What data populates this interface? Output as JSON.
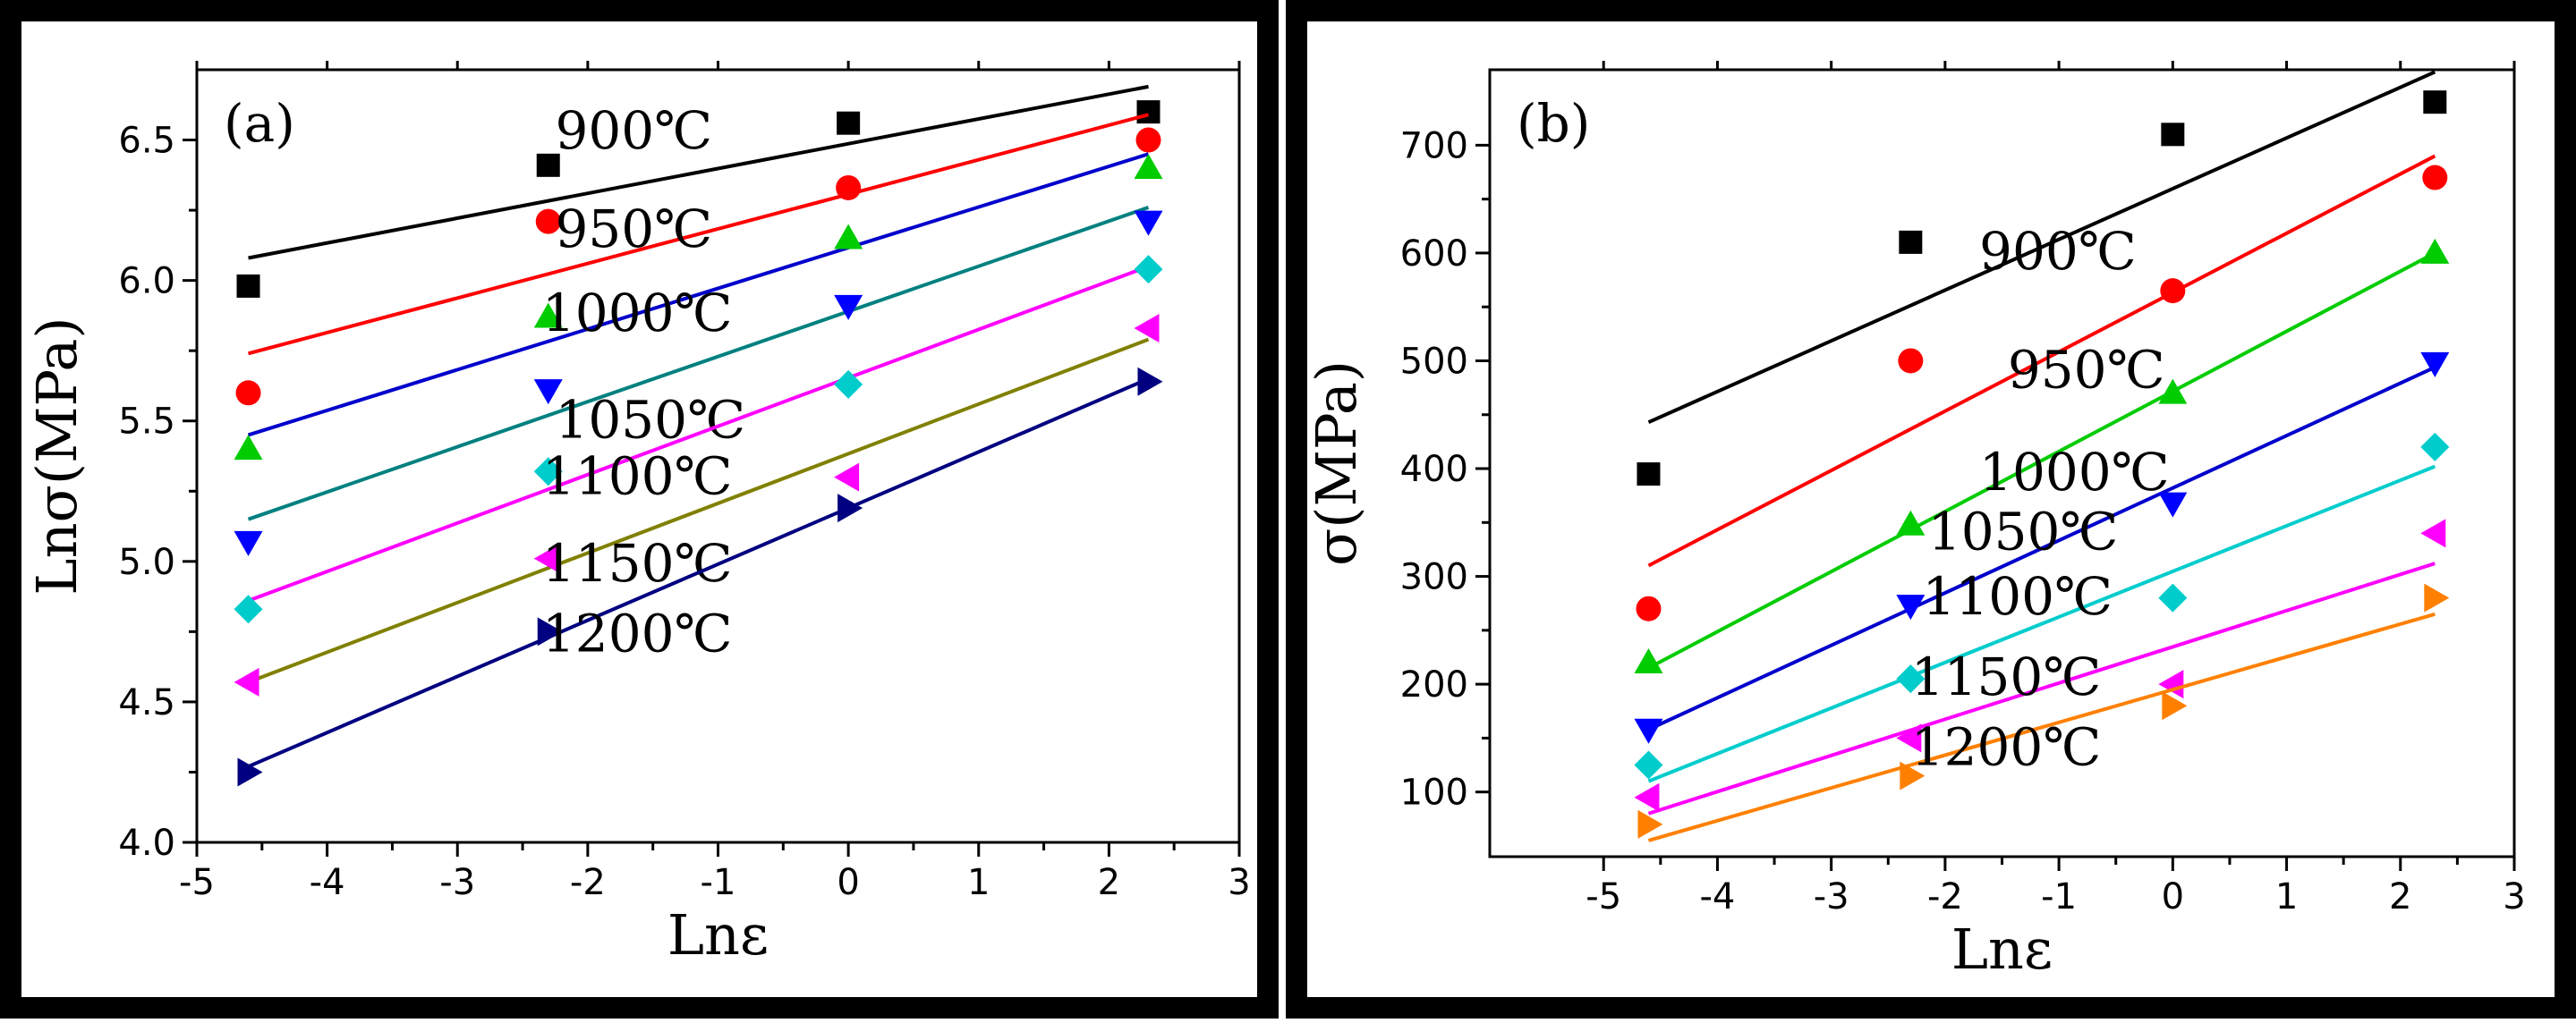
{
  "chart_data": [
    {
      "type": "scatter",
      "panel_label": "(a)",
      "xlabel": "Lnε",
      "ylabel": "Lnσ(MPa)",
      "xlim": [
        -5,
        3
      ],
      "ylim": [
        4.0,
        6.75
      ],
      "x_ticks": [
        -5,
        -4,
        -3,
        -2,
        -1,
        0,
        1,
        2,
        3
      ],
      "y_ticks": [
        4.0,
        4.5,
        5.0,
        5.5,
        6.0,
        6.5
      ],
      "x_tick_labels": [
        "-5",
        "-4",
        "-3",
        "-2",
        "-1",
        "0",
        "1",
        "2",
        "3"
      ],
      "y_tick_labels": [
        "4.0",
        "4.5",
        "5.0",
        "5.5",
        "6.0",
        "6.5"
      ],
      "x": [
        -4.605,
        -2.303,
        0,
        2.303
      ],
      "series": [
        {
          "name": "900℃",
          "marker": "square",
          "color": "#000000",
          "values": [
            5.98,
            6.41,
            6.56,
            6.6
          ],
          "fit": [
            6.08,
            6.69
          ],
          "label_pos": [
            -2.25,
            6.47
          ]
        },
        {
          "name": "950℃",
          "marker": "circle",
          "color": "#ff0000",
          "values": [
            5.6,
            6.21,
            6.33,
            6.5
          ],
          "fit": [
            5.74,
            6.59
          ],
          "label_pos": [
            -2.25,
            6.12
          ]
        },
        {
          "name": "1000℃",
          "marker": "triangle-up",
          "color": "#00cc00",
          "values": [
            5.4,
            5.87,
            6.15,
            6.4
          ],
          "fit": [
            5.45,
            6.45
          ],
          "label_pos": [
            -2.35,
            5.82
          ]
        },
        {
          "name": "1050℃",
          "marker": "triangle-down",
          "color": "#0000ff",
          "values": [
            5.07,
            5.61,
            5.91,
            6.21
          ],
          "fit": [
            5.15,
            6.26
          ],
          "label_pos": [
            -2.25,
            5.44
          ]
        },
        {
          "name": "1100℃",
          "marker": "diamond",
          "color": "#00cccc",
          "values": [
            4.83,
            5.32,
            5.63,
            6.04
          ],
          "fit": [
            4.86,
            6.05
          ],
          "label_pos": [
            -2.35,
            5.24
          ]
        },
        {
          "name": "1150℃",
          "marker": "triangle-left",
          "color": "#ff00ff",
          "values": [
            4.57,
            5.01,
            5.3,
            5.83
          ],
          "fit": [
            4.57,
            5.79
          ],
          "label_pos": [
            -2.35,
            4.93
          ]
        },
        {
          "name": "1200℃",
          "marker": "triangle-right",
          "color": "#000080",
          "values": [
            4.25,
            4.75,
            5.19,
            5.64
          ],
          "fit": [
            4.27,
            5.65
          ],
          "label_pos": [
            -2.35,
            4.68
          ]
        }
      ],
      "fit_colors": [
        "#000000",
        "#ff0000",
        "#0000cc",
        "#008080",
        "#ff00ff",
        "#808000",
        "#000080"
      ]
    },
    {
      "type": "scatter",
      "panel_label": "(b)",
      "xlabel": "Lnε",
      "ylabel": "σ(MPa)",
      "xlim": [
        -6,
        3
      ],
      "ylim": [
        40,
        770
      ],
      "x_ticks": [
        -5,
        -4,
        -3,
        -2,
        -1,
        0,
        1,
        2,
        3
      ],
      "y_ticks": [
        100,
        200,
        300,
        400,
        500,
        600,
        700
      ],
      "x_tick_labels": [
        "-5",
        "-4",
        "-3",
        "-2",
        "-1",
        "0",
        "1",
        "2",
        "3"
      ],
      "y_tick_labels": [
        "100",
        "200",
        "300",
        "400",
        "500",
        "600",
        "700"
      ],
      "x": [
        -4.605,
        -2.303,
        0,
        2.303
      ],
      "series": [
        {
          "name": "900℃",
          "marker": "square",
          "color": "#000000",
          "values": [
            395,
            610,
            710,
            740
          ],
          "fit": [
            443,
            768
          ],
          "label_pos": [
            -1.7,
            585
          ]
        },
        {
          "name": "950℃",
          "marker": "circle",
          "color": "#ff0000",
          "values": [
            270,
            500,
            565,
            670
          ],
          "fit": [
            310,
            690
          ],
          "label_pos": [
            -1.45,
            475
          ]
        },
        {
          "name": "1000℃",
          "marker": "triangle-up",
          "color": "#00cc00",
          "values": [
            220,
            348,
            470,
            600
          ],
          "fit": [
            215,
            600
          ],
          "label_pos": [
            -1.7,
            380
          ]
        },
        {
          "name": "1050℃",
          "marker": "triangle-down",
          "color": "#0000ff",
          "values": [
            158,
            273,
            368,
            498
          ],
          "fit": [
            158,
            494
          ],
          "label_pos": [
            -2.15,
            325
          ]
        },
        {
          "name": "1100℃",
          "marker": "diamond",
          "color": "#00cccc",
          "values": [
            125,
            205,
            280,
            420
          ],
          "fit": [
            110,
            402
          ],
          "label_pos": [
            -2.2,
            265
          ]
        },
        {
          "name": "1150℃",
          "marker": "triangle-left",
          "color": "#ff00ff",
          "values": [
            95,
            150,
            200,
            340
          ],
          "fit": [
            80,
            312
          ],
          "label_pos": [
            -2.3,
            190
          ]
        },
        {
          "name": "1200℃",
          "marker": "triangle-right",
          "color": "#ff8000",
          "values": [
            70,
            115,
            180,
            280
          ],
          "fit": [
            55,
            265
          ],
          "label_pos": [
            -2.3,
            125
          ]
        }
      ],
      "fit_colors": [
        "#000000",
        "#ff0000",
        "#00cc00",
        "#0000cc",
        "#00cccc",
        "#ff00ff",
        "#ff8000"
      ]
    }
  ]
}
